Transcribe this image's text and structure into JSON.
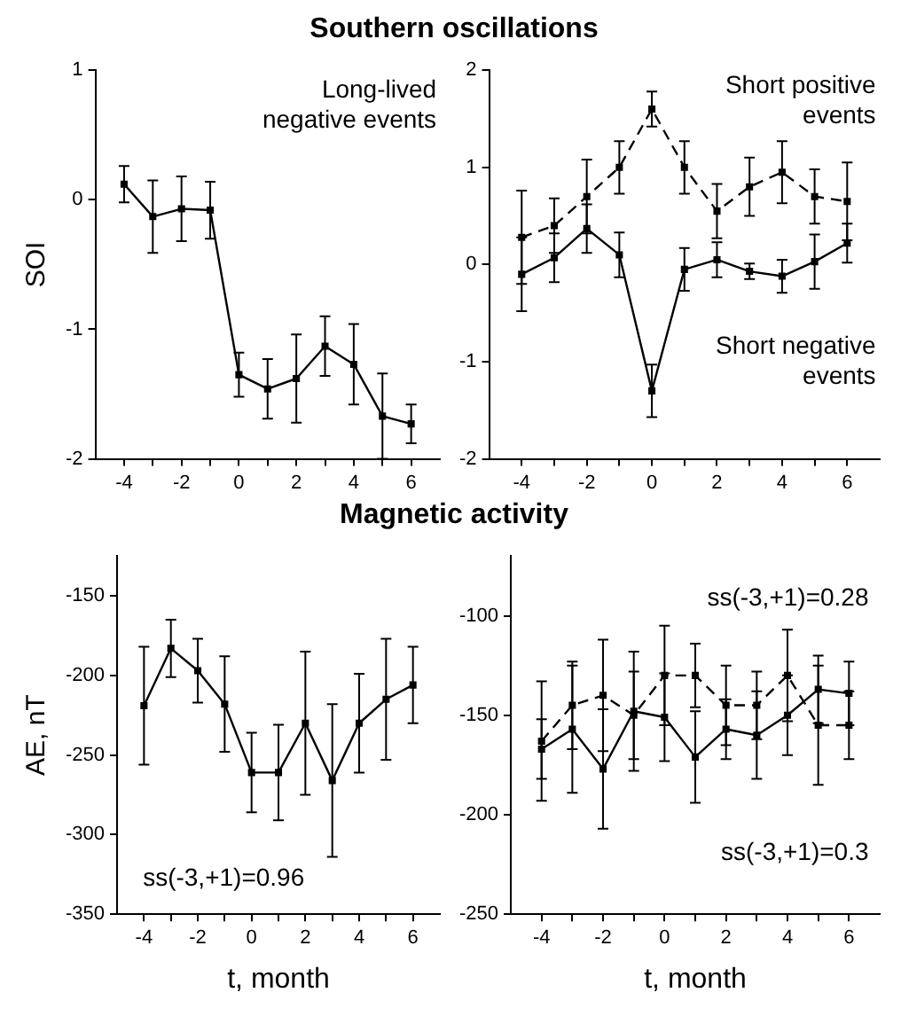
{
  "chart_data": [
    {
      "type": "line",
      "title": "Southern oscillations",
      "ylabel": "SOI",
      "x": [
        -4,
        -3,
        -2,
        -1,
        0,
        1,
        2,
        3,
        4,
        5,
        6
      ],
      "xlim": [
        -5,
        7
      ],
      "xticks": [
        -4,
        {
          "value": -3,
          "label": null
        },
        -2,
        {
          "value": -1,
          "label": null
        },
        0,
        {
          "value": 1,
          "label": null
        },
        2,
        {
          "value": 3,
          "label": null
        },
        4,
        {
          "value": 5,
          "label": null
        },
        6
      ],
      "ylim": [
        -2,
        1
      ],
      "yticks": [
        -2,
        -1,
        0,
        1
      ],
      "grid": false,
      "legend": false,
      "marker": "square",
      "series": [
        {
          "name": "Long-lived negative events",
          "color": "#000000",
          "line_style": "solid",
          "values": [
            0.12,
            -0.13,
            -0.07,
            -0.08,
            -1.35,
            -1.46,
            -1.38,
            -1.13,
            -1.27,
            -1.67,
            -1.73
          ],
          "errors": [
            0.14,
            0.28,
            0.25,
            0.22,
            0.17,
            0.23,
            0.34,
            0.23,
            0.31,
            0.33,
            0.15
          ]
        }
      ]
    },
    {
      "type": "line",
      "x": [
        -4,
        -3,
        -2,
        -1,
        0,
        1,
        2,
        3,
        4,
        5,
        6
      ],
      "xlim": [
        -5,
        7
      ],
      "xticks": [
        -4,
        {
          "value": -3,
          "label": null
        },
        -2,
        {
          "value": -1,
          "label": null
        },
        0,
        {
          "value": 1,
          "label": null
        },
        2,
        {
          "value": 3,
          "label": null
        },
        4,
        {
          "value": 5,
          "label": null
        },
        6
      ],
      "ylim": [
        -2,
        2
      ],
      "yticks": [
        -2,
        -1,
        0,
        1,
        2
      ],
      "grid": false,
      "legend": false,
      "marker": "square",
      "series": [
        {
          "name": "Short positive events",
          "color": "#000000",
          "line_style": "dashed",
          "values": [
            0.28,
            0.4,
            0.7,
            1.0,
            1.6,
            1.0,
            0.55,
            0.8,
            0.95,
            0.7,
            0.65
          ],
          "errors": [
            0.48,
            0.28,
            0.38,
            0.27,
            0.18,
            0.27,
            0.28,
            0.3,
            0.32,
            0.28,
            0.4
          ]
        },
        {
          "name": "Short negative events",
          "color": "#000000",
          "line_style": "solid",
          "values": [
            -0.1,
            0.07,
            0.37,
            0.1,
            -1.3,
            -0.05,
            0.05,
            -0.07,
            -0.12,
            0.03,
            0.22
          ],
          "errors": [
            0.38,
            0.25,
            0.25,
            0.23,
            0.27,
            0.22,
            0.18,
            0.08,
            0.17,
            0.28,
            0.2
          ]
        }
      ]
    },
    {
      "type": "line",
      "title": "Magnetic activity",
      "xlabel": "t, month",
      "ylabel": "AE, nT",
      "x": [
        -4,
        -3,
        -2,
        -1,
        0,
        1,
        2,
        3,
        4,
        5,
        6
      ],
      "xlim": [
        -5,
        7
      ],
      "xticks": [
        -4,
        {
          "value": -3,
          "label": null
        },
        -2,
        {
          "value": -1,
          "label": null
        },
        0,
        {
          "value": 1,
          "label": null
        },
        2,
        {
          "value": 3,
          "label": null
        },
        4,
        {
          "value": 5,
          "label": null
        },
        6
      ],
      "ylim": [
        -350,
        -125
      ],
      "yticks": [
        -350,
        -300,
        -250,
        -200,
        -150
      ],
      "grid": false,
      "legend": false,
      "marker": "square",
      "annotations": [
        "ss(-3,+1)=0.96"
      ],
      "series": [
        {
          "color": "#000000",
          "line_style": "solid",
          "values": [
            -219,
            -183,
            -197,
            -218,
            -261,
            -261,
            -230,
            -266,
            -230,
            -215,
            -206
          ],
          "errors": [
            37,
            18,
            20,
            30,
            25,
            30,
            45,
            48,
            31,
            38,
            24
          ]
        }
      ]
    },
    {
      "type": "line",
      "xlabel": "t, month",
      "x": [
        -4,
        -3,
        -2,
        -1,
        0,
        1,
        2,
        3,
        4,
        5,
        6
      ],
      "xlim": [
        -5,
        7
      ],
      "xticks": [
        -4,
        {
          "value": -3,
          "label": null
        },
        -2,
        {
          "value": -1,
          "label": null
        },
        0,
        {
          "value": 1,
          "label": null
        },
        2,
        {
          "value": 3,
          "label": null
        },
        4,
        {
          "value": 5,
          "label": null
        },
        6
      ],
      "ylim": [
        -250,
        -70
      ],
      "yticks": [
        -250,
        -200,
        -150,
        -100
      ],
      "grid": false,
      "legend": false,
      "marker": "square",
      "annotations": [
        "ss(-3,+1)=0.28",
        "ss(-3,+1)=0.3"
      ],
      "series": [
        {
          "color": "#000000",
          "line_style": "dashed",
          "values": [
            -163,
            -145,
            -140,
            -150,
            -130,
            -130,
            -145,
            -145,
            -130,
            -155,
            -155
          ],
          "errors": [
            30,
            22,
            28,
            22,
            25,
            16,
            20,
            17,
            23,
            30,
            17
          ]
        },
        {
          "color": "#000000",
          "line_style": "solid",
          "values": [
            -167,
            -157,
            -177,
            -148,
            -151,
            -171,
            -157,
            -160,
            -150,
            -137,
            -139
          ],
          "errors": [
            15,
            32,
            30,
            30,
            22,
            23,
            15,
            22,
            20,
            17,
            16
          ]
        }
      ]
    }
  ]
}
